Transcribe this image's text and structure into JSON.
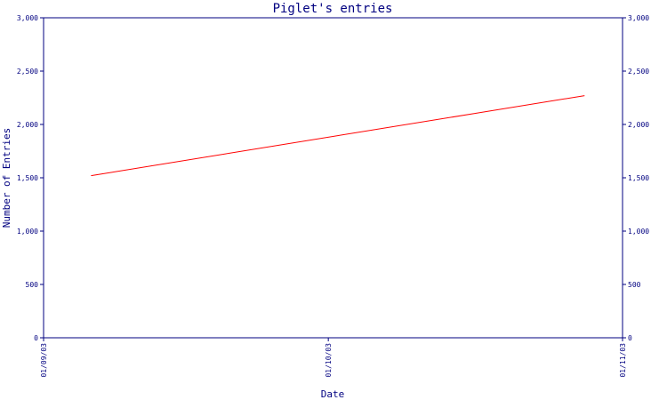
{
  "chart_data": {
    "type": "line",
    "title": "Piglet's entries",
    "xlabel": "Date",
    "ylabel": "Number of Entries",
    "x_ticks": [
      "01/09/03",
      "01/10/03",
      "01/11/03"
    ],
    "y_ticks": [
      "0",
      "500",
      "1,000",
      "1,500",
      "2,000",
      "2,500",
      "3,000"
    ],
    "ylim": [
      0,
      3000
    ],
    "xlim": [
      "2003-09-01",
      "2003-11-01"
    ],
    "grid": false,
    "series": [
      {
        "color": "#ff0000",
        "points": [
          {
            "x": "2003-09-06",
            "y": 1520
          },
          {
            "x": "2003-10-28",
            "y": 2270
          }
        ]
      }
    ]
  },
  "colors": {
    "axis": "#000080",
    "text": "#000080",
    "series": "#ff0000"
  }
}
